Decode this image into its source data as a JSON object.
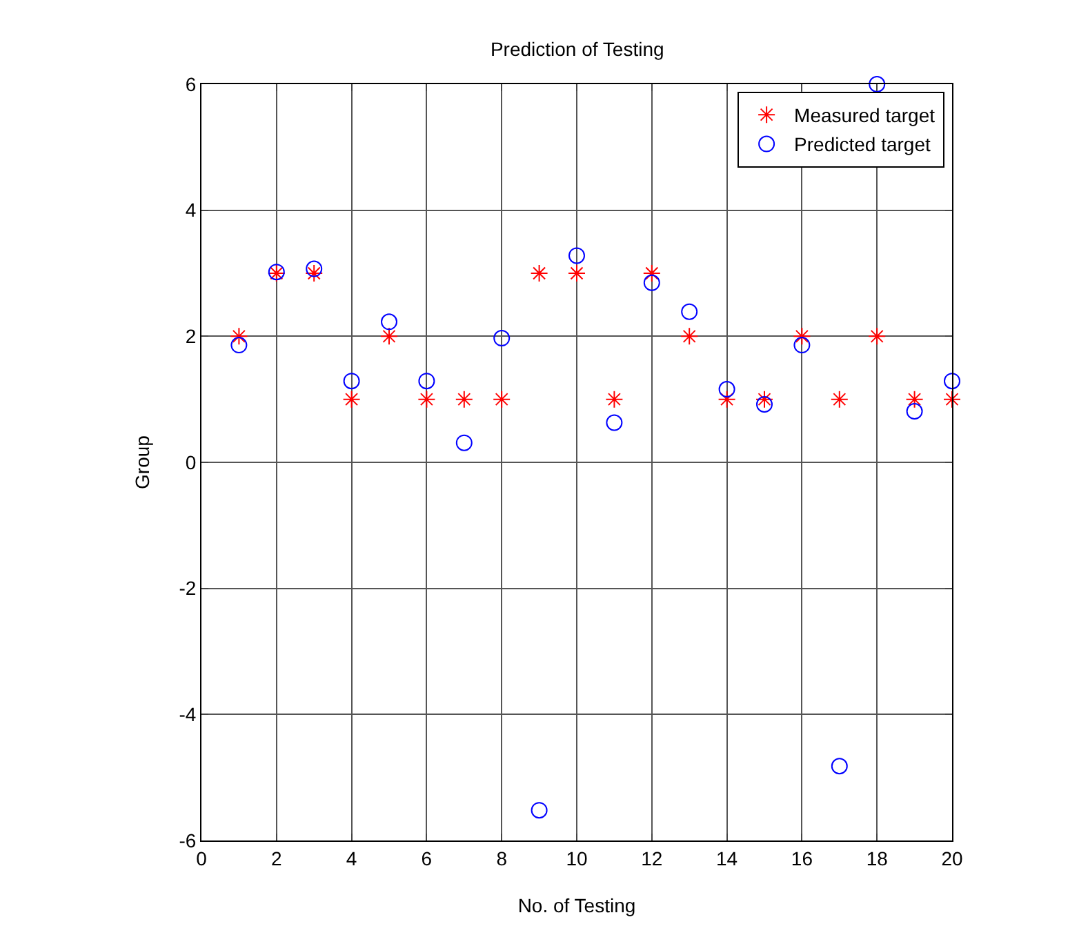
{
  "chart_data": {
    "type": "scatter",
    "title": "Prediction of Testing",
    "xlabel": "No. of Testing",
    "ylabel": "Group",
    "x": [
      1,
      2,
      3,
      4,
      5,
      6,
      7,
      8,
      9,
      10,
      11,
      12,
      13,
      14,
      15,
      16,
      17,
      18,
      19,
      20
    ],
    "series": [
      {
        "name": "Measured target",
        "color": "#ff0000",
        "marker": "cross",
        "values": [
          2,
          3,
          3,
          1,
          2,
          1,
          1,
          1,
          3,
          3,
          1,
          3,
          2,
          1,
          1,
          2,
          1,
          2,
          1,
          1
        ]
      },
      {
        "name": "Predicted target",
        "color": "#0000ff",
        "marker": "circle",
        "values": [
          1.86,
          3.02,
          3.07,
          1.29,
          2.23,
          1.29,
          0.31,
          1.97,
          -5.52,
          3.28,
          0.63,
          2.85,
          2.39,
          1.16,
          0.92,
          1.86,
          -4.82,
          6.0,
          0.81,
          1.29
        ]
      }
    ],
    "xlim": [
      0,
      20
    ],
    "xticks": [
      0,
      2,
      4,
      6,
      8,
      10,
      12,
      14,
      16,
      18,
      20
    ],
    "ylim": [
      -6,
      6
    ],
    "yticks": [
      -6,
      -4,
      -2,
      0,
      2,
      4,
      6
    ],
    "grid": true,
    "legend": "top right"
  }
}
